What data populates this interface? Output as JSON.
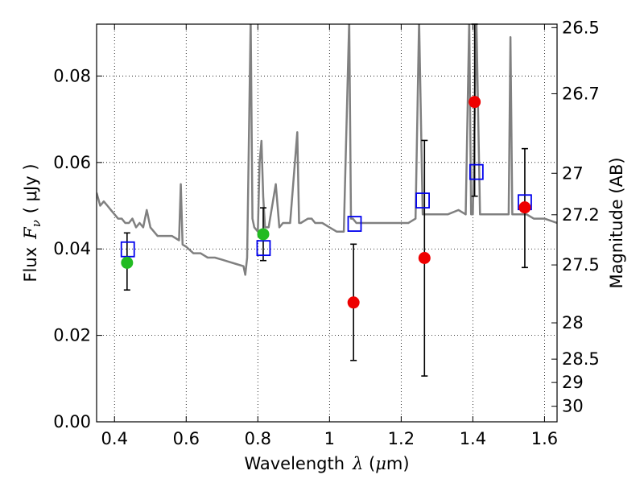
{
  "chart_data": {
    "type": "scatter",
    "xlabel": {
      "prefix": "Wavelength",
      "symbol": "λ",
      "unit_open": " (",
      "unit_mu": "μ",
      "unit_rest": "m)"
    },
    "ylabel": {
      "prefix": "Flux",
      "symbol": "F",
      "sub": "ν",
      "unit": "( μJy )"
    },
    "y2label": "Magnitude (AB)",
    "xlim": [
      0.35,
      1.635
    ],
    "ylim": [
      0.0,
      0.092
    ],
    "x_ticks": [
      0.4,
      0.6,
      0.8,
      1.0,
      1.2,
      1.4,
      1.6
    ],
    "x_tick_labels": [
      "0.4",
      "0.6",
      "0.8",
      "1",
      "1.2",
      "1.4",
      "1.6"
    ],
    "y_ticks": [
      0.0,
      0.02,
      0.04,
      0.06,
      0.08
    ],
    "y_tick_labels": [
      "0.00",
      "0.02",
      "0.04",
      "0.06",
      "0.08"
    ],
    "y2_ticks": [
      {
        "label": "26.5",
        "flux": 0.0912
      },
      {
        "label": "26.7",
        "flux": 0.0759
      },
      {
        "label": "27",
        "flux": 0.0575
      },
      {
        "label": "27.2",
        "flux": 0.0479
      },
      {
        "label": "27.5",
        "flux": 0.0363
      },
      {
        "label": "28",
        "flux": 0.0229
      },
      {
        "label": "28.5",
        "flux": 0.0145
      },
      {
        "label": "29",
        "flux": 0.0091
      },
      {
        "label": "30",
        "flux": 0.0036
      }
    ],
    "grid": true,
    "colors": {
      "model": "#808080",
      "green": "#22bb22",
      "red": "#ee0000",
      "box": "#0000ee",
      "errorbar": "#000000"
    },
    "model_spectrum": {
      "name": "",
      "x": [
        0.35,
        0.36,
        0.37,
        0.38,
        0.39,
        0.4,
        0.41,
        0.42,
        0.43,
        0.44,
        0.45,
        0.46,
        0.47,
        0.48,
        0.49,
        0.5,
        0.52,
        0.54,
        0.56,
        0.58,
        0.585,
        0.59,
        0.6,
        0.62,
        0.64,
        0.66,
        0.68,
        0.7,
        0.72,
        0.74,
        0.76,
        0.765,
        0.77,
        0.78,
        0.785,
        0.79,
        0.8,
        0.805,
        0.81,
        0.815,
        0.82,
        0.83,
        0.85,
        0.86,
        0.87,
        0.89,
        0.91,
        0.915,
        0.92,
        0.94,
        0.95,
        0.96,
        0.98,
        1.0,
        1.02,
        1.04,
        1.055,
        1.06,
        1.065,
        1.075,
        1.08,
        1.1,
        1.12,
        1.14,
        1.16,
        1.18,
        1.2,
        1.22,
        1.24,
        1.25,
        1.26,
        1.27,
        1.28,
        1.3,
        1.33,
        1.36,
        1.38,
        1.39,
        1.395,
        1.4,
        1.41,
        1.42,
        1.44,
        1.46,
        1.48,
        1.5,
        1.505,
        1.51,
        1.53,
        1.55,
        1.57,
        1.6,
        1.635
      ],
      "y": [
        0.053,
        0.05,
        0.051,
        0.05,
        0.049,
        0.048,
        0.047,
        0.047,
        0.046,
        0.046,
        0.047,
        0.045,
        0.046,
        0.045,
        0.049,
        0.045,
        0.043,
        0.043,
        0.043,
        0.042,
        0.055,
        0.041,
        0.0405,
        0.039,
        0.039,
        0.038,
        0.038,
        0.0375,
        0.037,
        0.0365,
        0.036,
        0.034,
        0.038,
        0.093,
        0.047,
        0.045,
        0.044,
        0.06,
        0.065,
        0.052,
        0.045,
        0.045,
        0.055,
        0.045,
        0.046,
        0.046,
        0.067,
        0.046,
        0.046,
        0.047,
        0.047,
        0.046,
        0.046,
        0.045,
        0.044,
        0.044,
        0.093,
        0.047,
        0.047,
        0.046,
        0.046,
        0.046,
        0.046,
        0.046,
        0.046,
        0.046,
        0.046,
        0.046,
        0.047,
        0.093,
        0.048,
        0.048,
        0.048,
        0.048,
        0.048,
        0.049,
        0.048,
        0.093,
        0.048,
        0.048,
        0.093,
        0.048,
        0.048,
        0.048,
        0.048,
        0.048,
        0.089,
        0.048,
        0.048,
        0.048,
        0.047,
        0.047,
        0.046
      ]
    },
    "green_points": [
      {
        "x": 0.435,
        "y": 0.0368,
        "err_low": 0.0305,
        "err_high": 0.0437
      },
      {
        "x": 0.815,
        "y": 0.0434,
        "err_low": 0.0373,
        "err_high": 0.0495
      }
    ],
    "red_points": [
      {
        "x": 1.067,
        "y": 0.0276,
        "err_low": 0.0142,
        "err_high": 0.0411
      },
      {
        "x": 1.265,
        "y": 0.0379,
        "err_low": 0.0106,
        "err_high": 0.0651
      },
      {
        "x": 1.405,
        "y": 0.074,
        "err_low": 0.0522,
        "err_high": 0.092
      },
      {
        "x": 1.545,
        "y": 0.0496,
        "err_low": 0.0357,
        "err_high": 0.0632
      }
    ],
    "model_boxes": [
      {
        "x": 0.437,
        "y": 0.0399
      },
      {
        "x": 0.816,
        "y": 0.0402
      },
      {
        "x": 1.07,
        "y": 0.0458
      },
      {
        "x": 1.26,
        "y": 0.0512
      },
      {
        "x": 1.41,
        "y": 0.0578
      },
      {
        "x": 1.545,
        "y": 0.0508
      }
    ]
  }
}
